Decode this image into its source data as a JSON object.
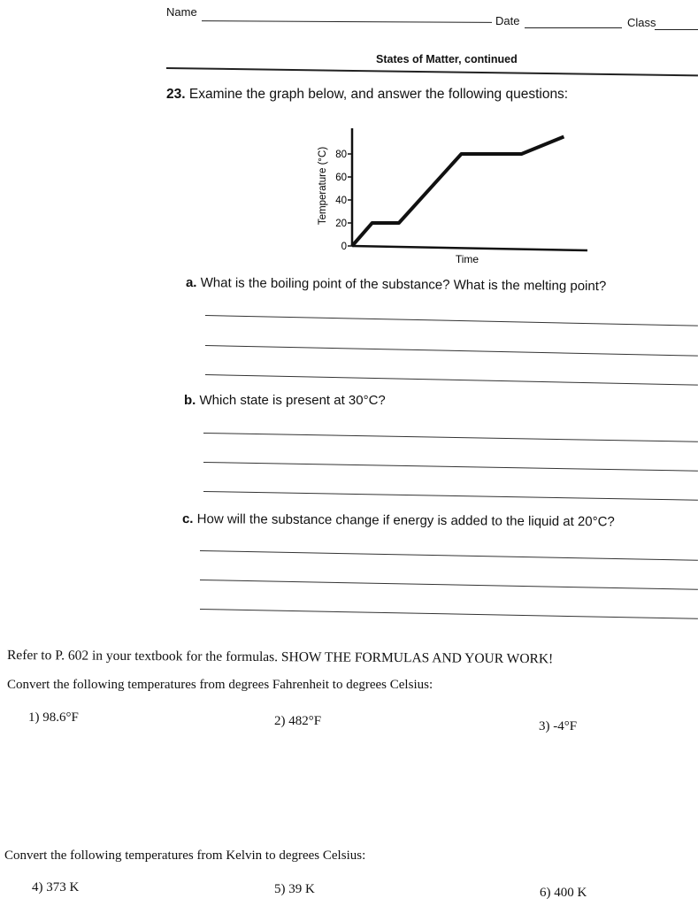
{
  "header": {
    "name_label": "Name",
    "date_label": "Date",
    "class_label": "Class",
    "section_title": "States of Matter, continued"
  },
  "question23": {
    "number": "23.",
    "prompt": "Examine the graph below, and answer the following questions:",
    "parts": [
      {
        "letter": "a.",
        "text": "What is the boiling point of the substance? What is the melting point?"
      },
      {
        "letter": "b.",
        "text": "Which state is present at 30°C?"
      },
      {
        "letter": "c.",
        "text": "How will the substance change if energy is added to the liquid at 20°C?"
      }
    ]
  },
  "chart_data": {
    "type": "line",
    "title": "",
    "xlabel": "Time",
    "ylabel": "Temperature (°C)",
    "yticks": [
      "0",
      "20",
      "40",
      "60",
      "80"
    ],
    "ylim": [
      0,
      100
    ],
    "xlim": [
      0,
      10
    ],
    "grid": false,
    "series": [
      {
        "x": [
          0,
          0.9,
          2.1,
          4.9,
          7.6,
          9.5
        ],
        "y": [
          0,
          20,
          20,
          80,
          80,
          95
        ]
      }
    ]
  },
  "conversions": {
    "instruction": "Refer to P. 602 in your textbook for the formulas. SHOW THE FORMULAS AND YOUR WORK!",
    "f_to_c_prompt": "Convert the following temperatures from degrees Fahrenheit to degrees Celsius:",
    "f_to_c_items": [
      "1)  98.6°F",
      "2) 482°F",
      "3) -4°F"
    ],
    "k_to_c_prompt": "Convert the following temperatures from Kelvin to degrees Celsius:",
    "k_to_c_items": [
      "4) 373 K",
      "5) 39 K",
      "6) 400 K"
    ]
  }
}
